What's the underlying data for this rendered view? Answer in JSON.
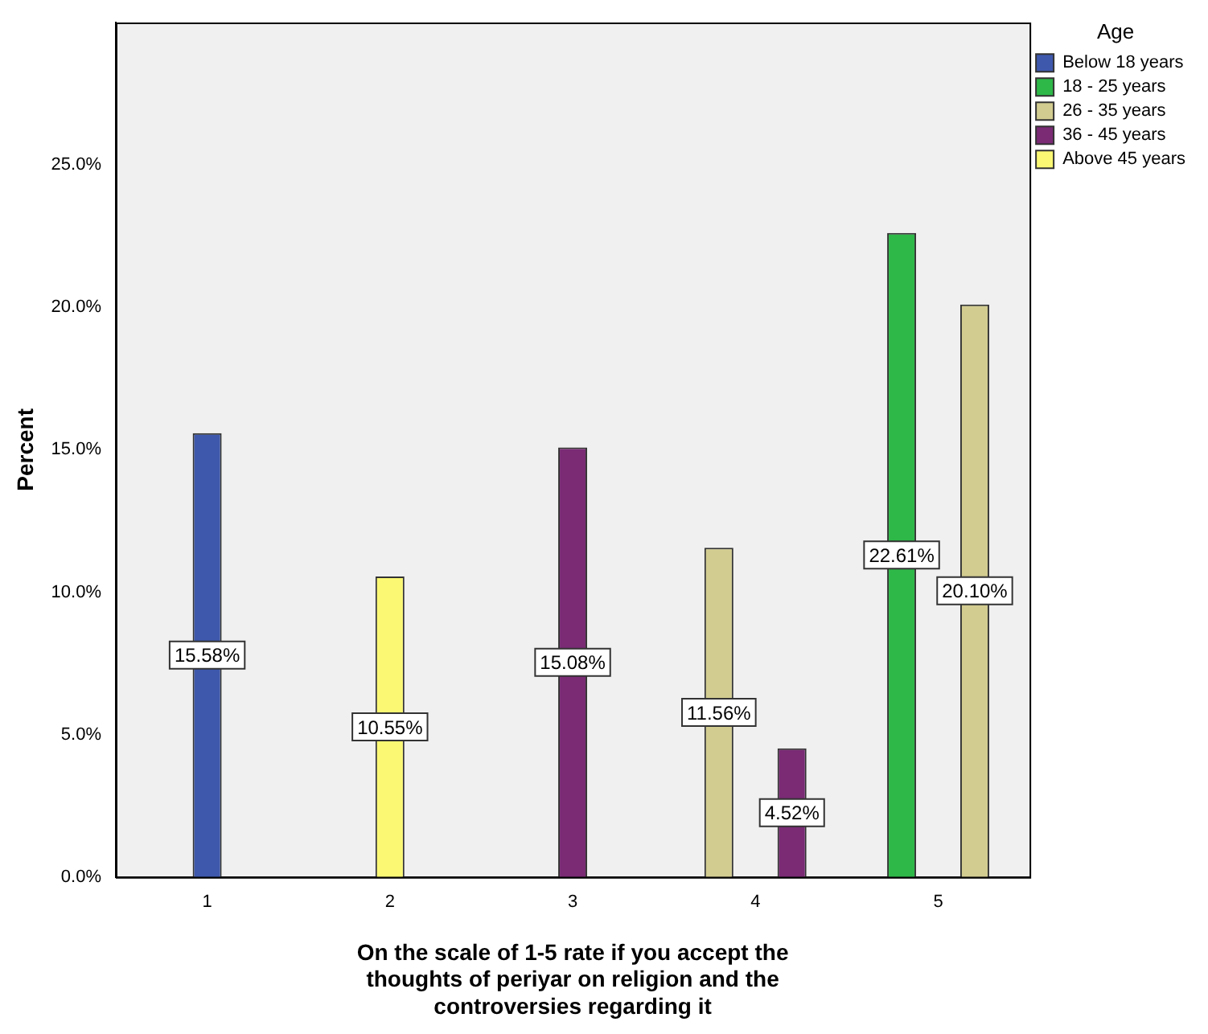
{
  "chart_data": {
    "type": "bar",
    "xlabel": "On the scale of 1-5 rate if you accept the thoughts of periyar on religion and the controversies regarding it",
    "ylabel": "Percent",
    "legend_title": "Age",
    "categories": [
      "1",
      "2",
      "3",
      "4",
      "5"
    ],
    "series": [
      {
        "name": "Below 18 years",
        "color": "#3e58ac",
        "values": [
          15.58,
          null,
          null,
          null,
          null
        ],
        "value_labels": [
          "15.58%",
          null,
          null,
          null,
          null
        ]
      },
      {
        "name": "18 - 25 years",
        "color": "#2eb848",
        "values": [
          null,
          null,
          null,
          null,
          22.61
        ],
        "value_labels": [
          null,
          null,
          null,
          null,
          "22.61%"
        ]
      },
      {
        "name": "26 - 35 years",
        "color": "#d2cc90",
        "values": [
          null,
          null,
          null,
          11.56,
          20.1
        ],
        "value_labels": [
          null,
          null,
          null,
          "11.56%",
          "20.10%"
        ]
      },
      {
        "name": "36 - 45 years",
        "color": "#7a2b74",
        "values": [
          null,
          null,
          15.08,
          4.52,
          null
        ],
        "value_labels": [
          null,
          null,
          "15.08%",
          "4.52%",
          null
        ]
      },
      {
        "name": "Above 45 years",
        "color": "#fbf873",
        "values": [
          null,
          10.55,
          null,
          null,
          null
        ],
        "value_labels": [
          null,
          "10.55%",
          null,
          null,
          null
        ]
      }
    ],
    "ylim": [
      0,
      30
    ],
    "yticks": [
      {
        "value": 0,
        "label": "0.0%"
      },
      {
        "value": 5,
        "label": "5.0%"
      },
      {
        "value": 10,
        "label": "10.0%"
      },
      {
        "value": 15,
        "label": "15.0%"
      },
      {
        "value": 20,
        "label": "20.0%"
      },
      {
        "value": 25,
        "label": "25.0%"
      }
    ],
    "grid": false,
    "legend": "right"
  }
}
